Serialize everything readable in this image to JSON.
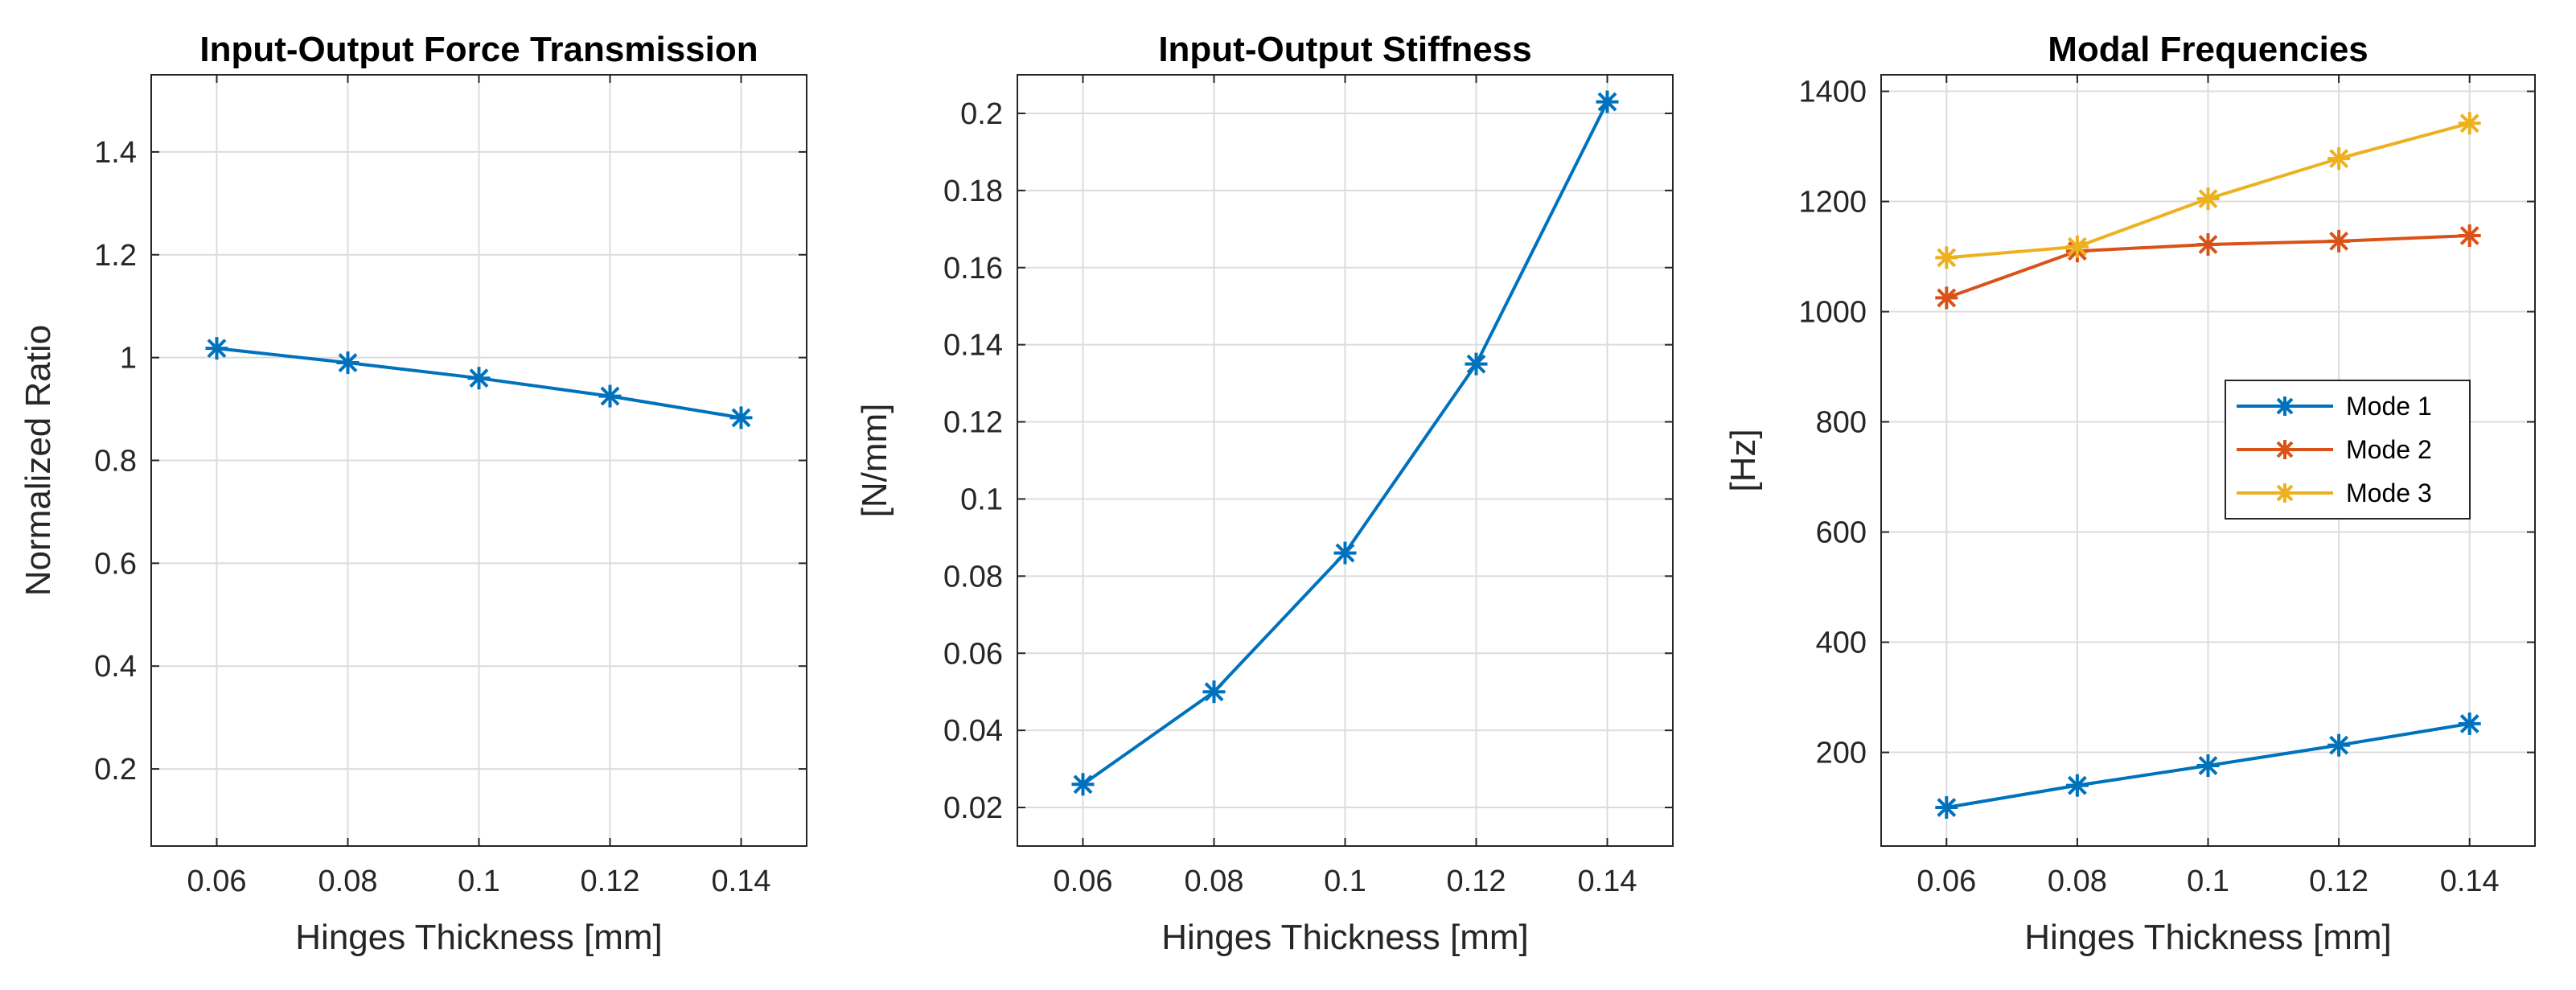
{
  "chart_data": [
    {
      "type": "line",
      "title": "Input-Output Force Transmission",
      "xlabel": "Hinges Thickness [mm]",
      "ylabel": "Normalized Ratio",
      "x": [
        0.06,
        0.08,
        0.1,
        0.12,
        0.14
      ],
      "xlim": [
        0.05,
        0.15
      ],
      "ylim": [
        0.05,
        1.55
      ],
      "xticks": [
        0.06,
        0.08,
        0.1,
        0.12,
        0.14
      ],
      "xtick_labels": [
        "0.06",
        "0.08",
        "0.1",
        "0.12",
        "0.14"
      ],
      "yticks": [
        0.2,
        0.4,
        0.6,
        0.8,
        1,
        1.2,
        1.4
      ],
      "ytick_labels": [
        "0.2",
        "0.4",
        "0.6",
        "0.8",
        "1",
        "1.2",
        "1.4"
      ],
      "grid": true,
      "series": [
        {
          "values": [
            1.018,
            0.99,
            0.96,
            0.925,
            0.883
          ],
          "color": "#0072BD",
          "marker": "asterisk"
        }
      ]
    },
    {
      "type": "line",
      "title": "Input-Output Stiffness",
      "xlabel": "Hinges Thickness [mm]",
      "ylabel": "[N/mm]",
      "x": [
        0.06,
        0.08,
        0.1,
        0.12,
        0.14
      ],
      "xlim": [
        0.05,
        0.15
      ],
      "ylim": [
        0.01,
        0.21
      ],
      "xticks": [
        0.06,
        0.08,
        0.1,
        0.12,
        0.14
      ],
      "xtick_labels": [
        "0.06",
        "0.08",
        "0.1",
        "0.12",
        "0.14"
      ],
      "yticks": [
        0.02,
        0.04,
        0.06,
        0.08,
        0.1,
        0.12,
        0.14,
        0.16,
        0.18,
        0.2
      ],
      "ytick_labels": [
        "0.02",
        "0.04",
        "0.06",
        "0.08",
        "0.1",
        "0.12",
        "0.14",
        "0.16",
        "0.18",
        "0.2"
      ],
      "grid": true,
      "series": [
        {
          "values": [
            0.026,
            0.05,
            0.086,
            0.135,
            0.203
          ],
          "color": "#0072BD",
          "marker": "asterisk"
        }
      ]
    },
    {
      "type": "line",
      "title": "Modal Frequencies",
      "xlabel": "Hinges Thickness [mm]",
      "ylabel": "[Hz]",
      "x": [
        0.06,
        0.08,
        0.1,
        0.12,
        0.14
      ],
      "xlim": [
        0.05,
        0.15
      ],
      "ylim": [
        30,
        1430
      ],
      "xticks": [
        0.06,
        0.08,
        0.1,
        0.12,
        0.14
      ],
      "xtick_labels": [
        "0.06",
        "0.08",
        "0.1",
        "0.12",
        "0.14"
      ],
      "yticks": [
        200,
        400,
        600,
        800,
        1000,
        1200,
        1400
      ],
      "ytick_labels": [
        "200",
        "400",
        "600",
        "800",
        "1000",
        "1200",
        "1400"
      ],
      "grid": true,
      "legend_position": "right",
      "series": [
        {
          "name": "Mode 1",
          "values": [
            100,
            140,
            176,
            213,
            252
          ],
          "color": "#0072BD",
          "marker": "asterisk"
        },
        {
          "name": "Mode 2",
          "values": [
            1025,
            1110,
            1122,
            1128,
            1138
          ],
          "color": "#D95319",
          "marker": "asterisk"
        },
        {
          "name": "Mode 3",
          "values": [
            1098,
            1118,
            1205,
            1278,
            1342
          ],
          "color": "#EDB120",
          "marker": "asterisk"
        }
      ]
    }
  ]
}
